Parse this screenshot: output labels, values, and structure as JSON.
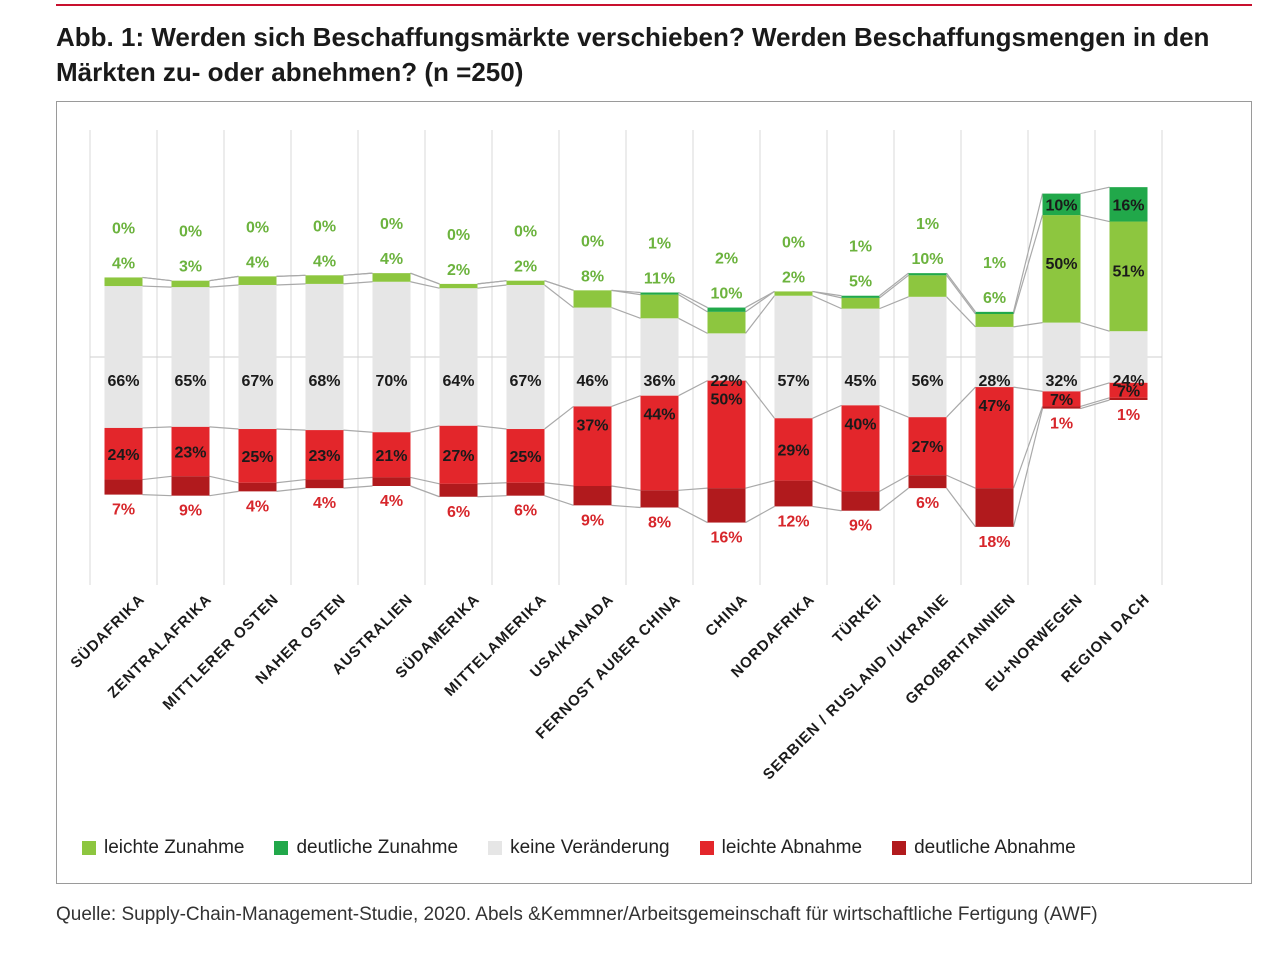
{
  "title": "Abb. 1: Werden sich Beschaffungsmärkte verschieben? Werden Beschaffungsmengen in den Märkten zu- oder abnehmen? (n =250)",
  "source": "Quelle: Supply-Chain-Management-Studie, 2020. Abels &Kemmner/Arbeitsgemeinschaft für wirtschaftliche Fertigung (AWF)",
  "colors": {
    "leichte_zunahme": "#8dc63f",
    "deutliche_zunahme": "#21a84a",
    "keine_veraenderung": "#e6e6e6",
    "leichte_abnahme": "#e3262b",
    "deutliche_abnahme": "#b11a1d",
    "label_green": "#6cb33e",
    "label_red": "#d7262b"
  },
  "chart_data": {
    "type": "bar",
    "subtype": "stacked-diverging",
    "categories": [
      "SÜDAFRIKA",
      "ZENTRALAFRIKA",
      "MITTLERER OSTEN",
      "NAHER OSTEN",
      "AUSTRALIEN",
      "SÜDAMERIKA",
      "MITTELAMERIKA",
      "USA/KANADA",
      "FERNOST AUßER CHINA",
      "CHINA",
      "NORDAFRIKA",
      "TÜRKEI",
      "SERBIEN / RUSLAND /UKRAINE",
      "GROßBRITANNIEN",
      "EU+NORWEGEN",
      "REGION DACH"
    ],
    "unit": "%",
    "series": [
      {
        "name": "leichte Zunahme",
        "values": [
          4,
          3,
          4,
          4,
          4,
          2,
          2,
          8,
          11,
          10,
          2,
          5,
          10,
          6,
          50,
          51
        ]
      },
      {
        "name": "deutliche Zunahme",
        "values": [
          0,
          0,
          0,
          0,
          0,
          0,
          0,
          0,
          1,
          2,
          0,
          1,
          1,
          1,
          10,
          16
        ]
      },
      {
        "name": "keine Veränderung",
        "values": [
          66,
          65,
          67,
          68,
          70,
          64,
          67,
          46,
          36,
          22,
          57,
          45,
          56,
          28,
          32,
          24
        ]
      },
      {
        "name": "leichte Abnahme",
        "values": [
          24,
          23,
          25,
          23,
          21,
          27,
          25,
          37,
          44,
          50,
          29,
          40,
          27,
          47,
          7,
          7
        ]
      },
      {
        "name": "deutliche Abnahme",
        "values": [
          7,
          9,
          4,
          4,
          4,
          6,
          6,
          9,
          8,
          16,
          12,
          9,
          6,
          18,
          1,
          1
        ]
      }
    ],
    "legend_position": "bottom",
    "grid": "vertical"
  }
}
